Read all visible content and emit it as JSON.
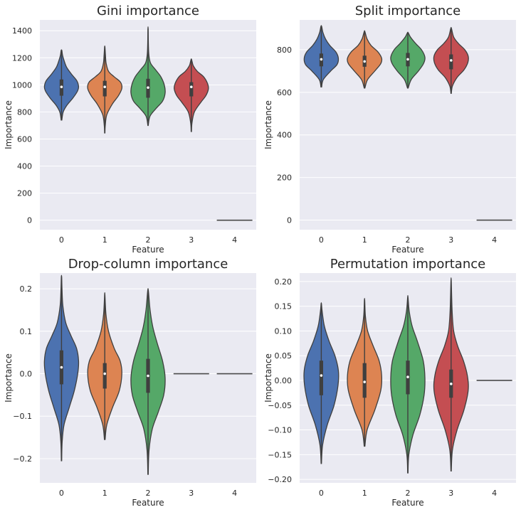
{
  "chart_data": [
    {
      "type": "violin",
      "title": "Gini importance",
      "xlabel": "Feature",
      "ylabel": "Importance",
      "categories": [
        "0",
        "1",
        "2",
        "3",
        "4"
      ],
      "colors": [
        "#4c72b0",
        "#dd8452",
        "#55a868",
        "#c44e52",
        "#8172b3"
      ],
      "ylim": [
        -70,
        1480
      ],
      "yticks": [
        0,
        200,
        400,
        600,
        800,
        1000,
        1200,
        1400
      ],
      "ytick_labels": [
        "0",
        "200",
        "400",
        "600",
        "800",
        "1000",
        "1200",
        "1400"
      ],
      "series": [
        {
          "category": "0",
          "min": 740,
          "max": 1255,
          "q1": 920,
          "median": 985,
          "q3": 1040,
          "density": [
            [
              740,
              0.02
            ],
            [
              800,
              0.1
            ],
            [
              850,
              0.32
            ],
            [
              900,
              0.65
            ],
            [
              950,
              0.92
            ],
            [
              985,
              1.0
            ],
            [
              1030,
              0.9
            ],
            [
              1080,
              0.58
            ],
            [
              1130,
              0.3
            ],
            [
              1180,
              0.15
            ],
            [
              1220,
              0.06
            ],
            [
              1255,
              0.02
            ]
          ]
        },
        {
          "category": "1",
          "min": 645,
          "max": 1280,
          "q1": 915,
          "median": 985,
          "q3": 1030,
          "density": [
            [
              645,
              0.01
            ],
            [
              700,
              0.03
            ],
            [
              780,
              0.12
            ],
            [
              860,
              0.45
            ],
            [
              920,
              0.8
            ],
            [
              975,
              1.0
            ],
            [
              1020,
              0.92
            ],
            [
              1060,
              0.55
            ],
            [
              1100,
              0.22
            ],
            [
              1160,
              0.08
            ],
            [
              1220,
              0.04
            ],
            [
              1280,
              0.01
            ]
          ]
        },
        {
          "category": "2",
          "min": 700,
          "max": 1415,
          "q1": 905,
          "median": 980,
          "q3": 1045,
          "density": [
            [
              700,
              0.01
            ],
            [
              770,
              0.12
            ],
            [
              830,
              0.5
            ],
            [
              880,
              0.85
            ],
            [
              940,
              1.0
            ],
            [
              1000,
              0.95
            ],
            [
              1060,
              0.75
            ],
            [
              1110,
              0.45
            ],
            [
              1160,
              0.15
            ],
            [
              1220,
              0.05
            ],
            [
              1300,
              0.02
            ],
            [
              1415,
              0.005
            ]
          ]
        },
        {
          "category": "3",
          "min": 655,
          "max": 1190,
          "q1": 915,
          "median": 985,
          "q3": 1020,
          "density": [
            [
              655,
              0.01
            ],
            [
              720,
              0.04
            ],
            [
              800,
              0.18
            ],
            [
              870,
              0.55
            ],
            [
              920,
              0.85
            ],
            [
              970,
              1.0
            ],
            [
              1010,
              0.95
            ],
            [
              1060,
              0.72
            ],
            [
              1100,
              0.35
            ],
            [
              1140,
              0.12
            ],
            [
              1170,
              0.05
            ],
            [
              1190,
              0.01
            ]
          ]
        },
        {
          "category": "4",
          "constant": 0
        }
      ]
    },
    {
      "type": "violin",
      "title": "Split importance",
      "xlabel": "Feature",
      "ylabel": "Importance",
      "categories": [
        "0",
        "1",
        "2",
        "3",
        "4"
      ],
      "colors": [
        "#4c72b0",
        "#dd8452",
        "#55a868",
        "#c44e52",
        "#8172b3"
      ],
      "ylim": [
        -45,
        940
      ],
      "yticks": [
        0,
        200,
        400,
        600,
        800
      ],
      "ytick_labels": [
        "0",
        "200",
        "400",
        "600",
        "800"
      ],
      "series": [
        {
          "category": "0",
          "min": 625,
          "max": 910,
          "q1": 722,
          "median": 755,
          "q3": 782,
          "density": [
            [
              625,
              0.02
            ],
            [
              660,
              0.12
            ],
            [
              700,
              0.55
            ],
            [
              730,
              0.92
            ],
            [
              760,
              1.0
            ],
            [
              790,
              0.85
            ],
            [
              820,
              0.5
            ],
            [
              850,
              0.25
            ],
            [
              880,
              0.1
            ],
            [
              910,
              0.02
            ]
          ]
        },
        {
          "category": "1",
          "min": 620,
          "max": 885,
          "q1": 720,
          "median": 745,
          "q3": 772,
          "density": [
            [
              620,
              0.02
            ],
            [
              660,
              0.18
            ],
            [
              700,
              0.6
            ],
            [
              735,
              0.95
            ],
            [
              760,
              1.0
            ],
            [
              790,
              0.78
            ],
            [
              820,
              0.38
            ],
            [
              850,
              0.15
            ],
            [
              885,
              0.02
            ]
          ]
        },
        {
          "category": "2",
          "min": 620,
          "max": 880,
          "q1": 722,
          "median": 755,
          "q3": 785,
          "density": [
            [
              620,
              0.02
            ],
            [
              660,
              0.2
            ],
            [
              700,
              0.62
            ],
            [
              735,
              0.92
            ],
            [
              765,
              1.0
            ],
            [
              800,
              0.8
            ],
            [
              830,
              0.45
            ],
            [
              860,
              0.15
            ],
            [
              880,
              0.02
            ]
          ]
        },
        {
          "category": "3",
          "min": 595,
          "max": 900,
          "q1": 708,
          "median": 750,
          "q3": 778,
          "density": [
            [
              595,
              0.01
            ],
            [
              630,
              0.08
            ],
            [
              670,
              0.35
            ],
            [
              705,
              0.75
            ],
            [
              740,
              0.98
            ],
            [
              770,
              1.0
            ],
            [
              800,
              0.8
            ],
            [
              830,
              0.42
            ],
            [
              860,
              0.15
            ],
            [
              900,
              0.02
            ]
          ]
        },
        {
          "category": "4",
          "constant": 0
        }
      ]
    },
    {
      "type": "violin",
      "title": "Drop-column importance",
      "xlabel": "Feature",
      "ylabel": "Importance",
      "categories": [
        "0",
        "1",
        "2",
        "3",
        "4"
      ],
      "colors": [
        "#4c72b0",
        "#dd8452",
        "#55a868",
        "#c44e52",
        "#8172b3"
      ],
      "ylim": [
        -0.257,
        0.237
      ],
      "yticks": [
        -0.2,
        -0.1,
        0.0,
        0.1,
        0.2
      ],
      "ytick_labels": [
        "−0.2",
        "−0.1",
        "0.0",
        "0.1",
        "0.2"
      ],
      "series": [
        {
          "category": "0",
          "min": -0.205,
          "max": 0.228,
          "q1": -0.025,
          "median": 0.015,
          "q3": 0.055,
          "density": [
            [
              -0.205,
              0.01
            ],
            [
              -0.16,
              0.04
            ],
            [
              -0.12,
              0.15
            ],
            [
              -0.08,
              0.45
            ],
            [
              -0.04,
              0.75
            ],
            [
              0.0,
              0.95
            ],
            [
              0.03,
              1.0
            ],
            [
              0.06,
              0.88
            ],
            [
              0.09,
              0.55
            ],
            [
              0.12,
              0.25
            ],
            [
              0.16,
              0.08
            ],
            [
              0.2,
              0.03
            ],
            [
              0.228,
              0.01
            ]
          ]
        },
        {
          "category": "1",
          "min": -0.155,
          "max": 0.185,
          "q1": -0.035,
          "median": 0.0,
          "q3": 0.025,
          "density": [
            [
              -0.155,
              0.02
            ],
            [
              -0.12,
              0.12
            ],
            [
              -0.08,
              0.45
            ],
            [
              -0.04,
              0.85
            ],
            [
              0.0,
              1.0
            ],
            [
              0.03,
              0.9
            ],
            [
              0.06,
              0.55
            ],
            [
              0.1,
              0.22
            ],
            [
              0.14,
              0.07
            ],
            [
              0.185,
              0.01
            ]
          ]
        },
        {
          "category": "2",
          "min": -0.237,
          "max": 0.195,
          "q1": -0.045,
          "median": -0.005,
          "q3": 0.035,
          "density": [
            [
              -0.237,
              0.01
            ],
            [
              -0.18,
              0.06
            ],
            [
              -0.13,
              0.25
            ],
            [
              -0.09,
              0.6
            ],
            [
              -0.05,
              0.92
            ],
            [
              -0.01,
              1.0
            ],
            [
              0.03,
              0.85
            ],
            [
              0.07,
              0.55
            ],
            [
              0.11,
              0.28
            ],
            [
              0.15,
              0.12
            ],
            [
              0.195,
              0.02
            ]
          ]
        },
        {
          "category": "3",
          "constant": 0
        },
        {
          "category": "4",
          "constant": 0
        }
      ]
    },
    {
      "type": "violin",
      "title": "Permutation importance",
      "xlabel": "Feature",
      "ylabel": "Importance",
      "categories": [
        "0",
        "1",
        "2",
        "3",
        "4"
      ],
      "colors": [
        "#4c72b0",
        "#dd8452",
        "#55a868",
        "#c44e52",
        "#8172b3"
      ],
      "ylim": [
        -0.207,
        0.217
      ],
      "yticks": [
        -0.2,
        -0.15,
        -0.1,
        -0.05,
        0.0,
        0.05,
        0.1,
        0.15,
        0.2
      ],
      "ytick_labels": [
        "−0.20",
        "−0.15",
        "−0.10",
        "−0.05",
        "0.00",
        "0.05",
        "0.10",
        "0.15",
        "0.20"
      ],
      "series": [
        {
          "category": "0",
          "min": -0.168,
          "max": 0.155,
          "q1": -0.03,
          "median": 0.01,
          "q3": 0.04,
          "density": [
            [
              -0.168,
              0.01
            ],
            [
              -0.13,
              0.08
            ],
            [
              -0.09,
              0.35
            ],
            [
              -0.05,
              0.75
            ],
            [
              -0.01,
              0.98
            ],
            [
              0.02,
              1.0
            ],
            [
              0.05,
              0.8
            ],
            [
              0.08,
              0.45
            ],
            [
              0.11,
              0.18
            ],
            [
              0.14,
              0.05
            ],
            [
              0.155,
              0.01
            ]
          ]
        },
        {
          "category": "1",
          "min": -0.133,
          "max": 0.162,
          "q1": -0.035,
          "median": -0.003,
          "q3": 0.035,
          "density": [
            [
              -0.133,
              0.02
            ],
            [
              -0.1,
              0.15
            ],
            [
              -0.06,
              0.6
            ],
            [
              -0.02,
              0.95
            ],
            [
              0.01,
              1.0
            ],
            [
              0.04,
              0.85
            ],
            [
              0.07,
              0.5
            ],
            [
              0.1,
              0.18
            ],
            [
              0.13,
              0.05
            ],
            [
              0.162,
              0.01
            ]
          ]
        },
        {
          "category": "2",
          "min": -0.187,
          "max": 0.168,
          "q1": -0.028,
          "median": 0.007,
          "q3": 0.04,
          "density": [
            [
              -0.187,
              0.01
            ],
            [
              -0.15,
              0.06
            ],
            [
              -0.11,
              0.3
            ],
            [
              -0.07,
              0.7
            ],
            [
              -0.03,
              0.95
            ],
            [
              0.005,
              1.0
            ],
            [
              0.04,
              0.9
            ],
            [
              0.08,
              0.55
            ],
            [
              0.11,
              0.25
            ],
            [
              0.14,
              0.08
            ],
            [
              0.168,
              0.01
            ]
          ]
        },
        {
          "category": "3",
          "min": -0.183,
          "max": 0.2,
          "q1": -0.035,
          "median": -0.007,
          "q3": 0.022,
          "density": [
            [
              -0.183,
              0.01
            ],
            [
              -0.14,
              0.08
            ],
            [
              -0.1,
              0.35
            ],
            [
              -0.06,
              0.75
            ],
            [
              -0.02,
              1.0
            ],
            [
              0.01,
              0.95
            ],
            [
              0.04,
              0.72
            ],
            [
              0.07,
              0.38
            ],
            [
              0.1,
              0.15
            ],
            [
              0.14,
              0.06
            ],
            [
              0.2,
              0.01
            ]
          ]
        },
        {
          "category": "4",
          "constant": 0
        }
      ]
    }
  ]
}
